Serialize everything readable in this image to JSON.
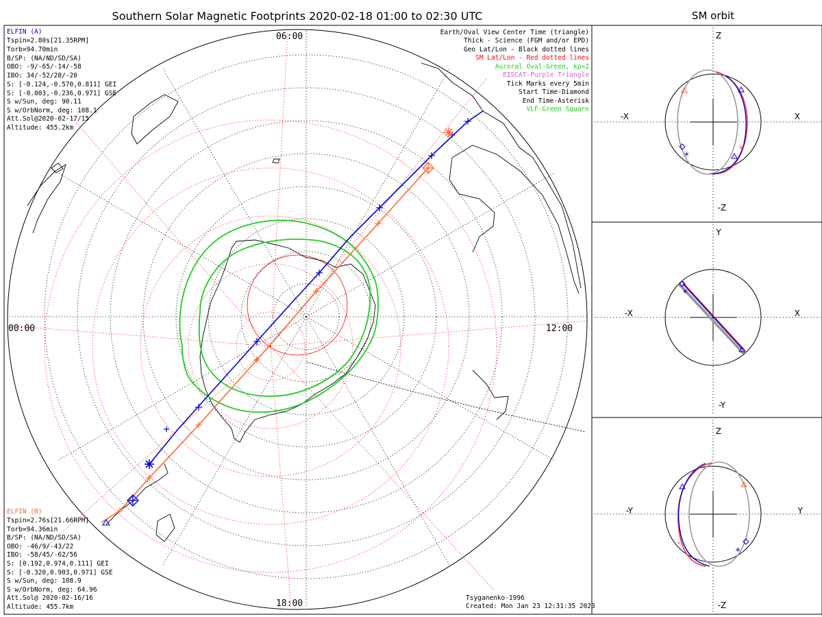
{
  "title": "Southern Solar Magnetic Footprints 2020-02-18 01:00 to 02:30 UTC",
  "orbit_title": "SM orbit",
  "mlt_labels": {
    "top": "06:00",
    "left": "00:00",
    "right": "12:00",
    "bottom": "18:00"
  },
  "elfin_a": {
    "name": "ELFIN (A)",
    "color": "#0000cc",
    "lines": [
      "Tspin=2.80s[21.35RPM]",
      "Torb=94.70min",
      "B/SP: (NA/ND/SD/SA)",
      "OBO: -9/-65/-14/-58",
      "IBO: 34/-52/28/-20",
      "S: [-0.124,-0.570,0.811] GEI",
      "S: [-0.003,-0.236,0.971] GSE",
      "S w/Sun, deg: 90.11",
      "S w/OrbNorm, deg: 108.1",
      "Att.Sol@2020-02-17/15",
      "Altitude: 455.2km"
    ]
  },
  "elfin_b": {
    "name": "ELFIN (B)",
    "color": "#ff6633",
    "lines": [
      "Tspin=2.76s[21.66RPM]",
      "Torb=94.36min",
      "B/SP: (NA/ND/SD/SA)",
      "OBO: -46/9/-43/22",
      "IBO: -58/45/-62/56",
      "S: [0.192,0.974,0.111] GEI",
      "S: [-0.320,0.903,0.971] GSE",
      "S w/Sun, deg: 108.9",
      "S w/OrbNorm, deg: 64.96",
      "Att.Sol@ 2020-02-16/16",
      "Altitude: 455.7km"
    ]
  },
  "legend": [
    {
      "text": "Earth/Oval View Center Time (triangle)",
      "color": "#000000"
    },
    {
      "text": "Thick - Science (FGM and/or EPD)",
      "color": "#000000"
    },
    {
      "text": "Geo Lat/Lon - Black dotted lines",
      "color": "#000000"
    },
    {
      "text": "SM Lat/Lon - Red dotted lines",
      "color": "#ff0000"
    },
    {
      "text": "Auroral Oval-Green, kp=2",
      "color": "#22cc22"
    },
    {
      "text": "EISCAT-Purple Triangle",
      "color": "#cc66cc"
    },
    {
      "text": "Tick Marks every 5min",
      "color": "#000000"
    },
    {
      "text": "Start Time-Diamond",
      "color": "#000000"
    },
    {
      "text": "End Time-Asterisk",
      "color": "#000000"
    },
    {
      "text": "VLF-Green Square",
      "color": "#22cc22"
    }
  ],
  "footer": {
    "model": "Tsyganenko-1996",
    "created": "Created: Mon Jan 23 12:31:35 2023"
  },
  "orbit_panels": [
    {
      "left": "-X",
      "right": "X",
      "top": "Z",
      "bottom": "-Z"
    },
    {
      "left": "-X",
      "right": "X",
      "top": "Y",
      "bottom": "-Y"
    },
    {
      "left": "-Y",
      "right": "Y",
      "top": "Z",
      "bottom": "-Z"
    }
  ],
  "colors": {
    "elfin_a": "#0000cc",
    "elfin_b": "#ff6633",
    "oval": "#22cc22",
    "sm_grid": "#ff0000",
    "geo_grid": "#000000",
    "orbit_ref": "#999999"
  }
}
